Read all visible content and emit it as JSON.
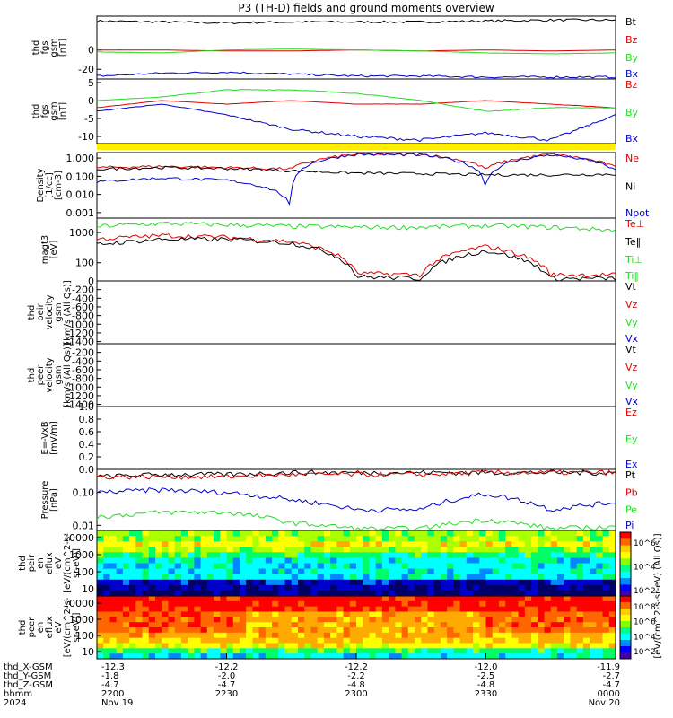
{
  "title": "P3 (TH-D) fields and ground moments overview",
  "colors": {
    "black": "#000000",
    "red": "#dd0000",
    "green": "#22dd22",
    "blue": "#0000cc",
    "yellow": "#ffee00"
  },
  "panels": [
    {
      "id": "bfield-fgs-gsm",
      "ylabel_lines": [
        "thd",
        "fgs",
        "gsm",
        "[nT]"
      ],
      "yticks": [
        "0",
        "-20"
      ],
      "ylim": [
        -30,
        35
      ],
      "scale": "linear",
      "legend": [
        {
          "name": "Bt",
          "color": "black"
        },
        {
          "name": "Bz",
          "color": "red"
        },
        {
          "name": "By",
          "color": "green"
        },
        {
          "name": "Bx",
          "color": "blue"
        }
      ]
    },
    {
      "id": "bfield-fgs-gsm-zoom",
      "ylabel_lines": [
        "thd",
        "fgs",
        "gsm",
        "[nT]"
      ],
      "yticks": [
        "5",
        "0",
        "-5",
        "-10"
      ],
      "ylim": [
        -12,
        6
      ],
      "scale": "linear",
      "legend": [
        {
          "name": "Bz",
          "color": "red"
        },
        {
          "name": "By",
          "color": "green"
        },
        {
          "name": "Bx",
          "color": "blue"
        }
      ]
    },
    {
      "id": "density",
      "ylabel_lines": [
        "Density",
        "[1/cc]",
        "[cm-3]"
      ],
      "yticks": [
        "1.000",
        "0.100",
        "0.010",
        "0.001"
      ],
      "ylim": [
        0.0005,
        2
      ],
      "scale": "log",
      "legend": [
        {
          "name": "Ne",
          "color": "red"
        },
        {
          "name": "Ni",
          "color": "black"
        },
        {
          "name": "Npot",
          "color": "blue"
        }
      ]
    },
    {
      "id": "temperature",
      "ylabel_lines": [
        "magt3",
        "[eV]"
      ],
      "yticks": [
        "1000",
        "100"
      ],
      "ylim": [
        25,
        3000
      ],
      "scale": "log",
      "legend": [
        {
          "name": "Te⊥",
          "color": "red"
        },
        {
          "name": "Te‖",
          "color": "black"
        },
        {
          "name": "Ti⊥",
          "color": "green"
        },
        {
          "name": "Ti‖",
          "color": "green"
        }
      ]
    },
    {
      "id": "ion-velocity",
      "ylabel_lines": [
        "thd",
        "peir",
        "velocity",
        "gsm",
        "[km/s (All Qs)]"
      ],
      "yticks": [
        "0",
        "-200",
        "-400",
        "-600",
        "-800",
        "-1000",
        "-1200",
        "-1400"
      ],
      "ylim": [
        -1450,
        0
      ],
      "scale": "linear",
      "legend": [
        {
          "name": "Vt",
          "color": "black"
        },
        {
          "name": "Vz",
          "color": "red"
        },
        {
          "name": "Vy",
          "color": "green"
        },
        {
          "name": "Vx",
          "color": "blue"
        }
      ]
    },
    {
      "id": "electron-velocity",
      "ylabel_lines": [
        "thd",
        "peer",
        "velocity",
        "gsm",
        "[km/s (All Qs)]"
      ],
      "yticks": [
        "-200",
        "-400",
        "-600",
        "-800",
        "-1000",
        "-1200",
        "-1400"
      ],
      "ylim": [
        -1450,
        0
      ],
      "scale": "linear",
      "legend": [
        {
          "name": "Vt",
          "color": "black"
        },
        {
          "name": "Vz",
          "color": "red"
        },
        {
          "name": "Vy",
          "color": "green"
        },
        {
          "name": "Vx",
          "color": "blue"
        }
      ]
    },
    {
      "id": "efield",
      "ylabel_lines": [
        "E=-VxB",
        "[mV/m]"
      ],
      "yticks": [
        "1.0",
        "0.8",
        "0.6",
        "0.4",
        "0.2",
        "0.0"
      ],
      "ylim": [
        0,
        1
      ],
      "scale": "linear",
      "legend": [
        {
          "name": "Ez",
          "color": "red"
        },
        {
          "name": "Ey",
          "color": "green"
        },
        {
          "name": "Ex",
          "color": "blue"
        }
      ]
    },
    {
      "id": "pressure",
      "ylabel_lines": [
        "Pressure",
        "[nPa]"
      ],
      "yticks": [
        "0.10",
        "0.01"
      ],
      "ylim": [
        0.007,
        0.5
      ],
      "scale": "log",
      "legend": [
        {
          "name": "Pt",
          "color": "black"
        },
        {
          "name": "Pb",
          "color": "red"
        },
        {
          "name": "Pe",
          "color": "green"
        },
        {
          "name": "Pi",
          "color": "blue"
        }
      ]
    },
    {
      "id": "ion-spectrogram",
      "ylabel_lines": [
        "thd",
        "peir",
        "en",
        "eflux",
        "eV",
        "[eV/(cm^2-s-",
        "sr-eV)]"
      ],
      "yticks": [
        "10000",
        "1000",
        "100",
        "10"
      ],
      "scale": "log"
    },
    {
      "id": "electron-spectrogram",
      "ylabel_lines": [
        "thd",
        "peer",
        "en",
        "eflux",
        "eV",
        "[eV/(cm^2-s-",
        "sr-eV)]"
      ],
      "yticks": [
        "10000",
        "1000",
        "100",
        "10"
      ],
      "scale": "log"
    }
  ],
  "colorbar": {
    "ticks_top": [
      "10^6",
      "10^4",
      "10^2"
    ],
    "ticks_bottom": [
      "10^8",
      "10^6",
      "10^4",
      "10^2"
    ],
    "label": "[eV/(cm^2-s-sr-eV) (All Qs)]"
  },
  "xaxis": {
    "row_labels": [
      "thd_X-GSM",
      "thd_Y-GSM",
      "thd_Z-GSM",
      "hhmm",
      "2024"
    ],
    "columns": [
      [
        "-12.3",
        "-1.8",
        "-4.7",
        "2200",
        "Nov 19"
      ],
      [
        "-12.2",
        "-2.0",
        "-4.7",
        "2230",
        ""
      ],
      [
        "-12.2",
        "-2.2",
        "-4.8",
        "2300",
        ""
      ],
      [
        "-12.0",
        "-2.5",
        "-4.8",
        "2330",
        ""
      ],
      [
        "-11.9",
        "-2.7",
        "-4.7",
        "0000",
        "Nov 20"
      ]
    ]
  },
  "chart_data": {
    "type": "line",
    "title": "P3 (TH-D) fields and ground moments overview",
    "x": [
      "2200",
      "2215",
      "2230",
      "2245",
      "2300",
      "2315",
      "2330",
      "2345",
      "0000"
    ],
    "panels": [
      {
        "id": "bfield-fgs-gsm",
        "series": [
          {
            "name": "Bt",
            "values": [
              30,
              29,
              28,
              29,
              29,
              29,
              30,
              31,
              31
            ]
          },
          {
            "name": "Bz",
            "values": [
              0,
              0,
              -1,
              -1,
              0,
              -1,
              0,
              -1,
              0
            ]
          },
          {
            "name": "By",
            "values": [
              -2,
              -3,
              0,
              1,
              0,
              -1,
              -3,
              -4,
              -3
            ]
          },
          {
            "name": "Bx",
            "values": [
              -27,
              -24,
              -23,
              -25,
              -27,
              -27,
              -28,
              -28,
              -28
            ]
          }
        ]
      },
      {
        "id": "bfield-fgs-gsm-zoom",
        "series": [
          {
            "name": "Bz",
            "values": [
              -2,
              0,
              -1,
              0,
              -1,
              -1,
              0,
              -1,
              -2
            ]
          },
          {
            "name": "By",
            "values": [
              0,
              1,
              3,
              3,
              2,
              0,
              -3,
              -2,
              -2
            ]
          },
          {
            "name": "Bx",
            "values": [
              -3,
              -1,
              -4,
              -8,
              -10,
              -11,
              -9,
              -11,
              -4
            ]
          }
        ]
      },
      {
        "id": "density",
        "series": [
          {
            "name": "Ne",
            "values": [
              0.3,
              0.35,
              0.3,
              0.25,
              1.6,
              1.6,
              0.25,
              1.6,
              0.3
            ]
          },
          {
            "name": "Ni",
            "values": [
              0.25,
              0.3,
              0.27,
              0.2,
              0.15,
              0.14,
              0.12,
              0.12,
              0.13
            ]
          },
          {
            "name": "Npot",
            "values": [
              0.05,
              0.08,
              0.06,
              0.0007,
              1.6,
              1.5,
              0.02,
              1.5,
              0.2
            ]
          }
        ]
      },
      {
        "id": "temperature",
        "series": [
          {
            "name": "Ti‖",
            "values": [
              1600,
              2000,
              1800,
              1600,
              1500,
              1500,
              1700,
              1500,
              1200
            ]
          },
          {
            "name": "Te⊥",
            "values": [
              600,
              800,
              700,
              500,
              45,
              40,
              350,
              40,
              40
            ]
          },
          {
            "name": "Te‖",
            "values": [
              400,
              600,
              600,
              450,
              35,
              30,
              250,
              30,
              30
            ]
          }
        ]
      },
      {
        "id": "pressure",
        "series": [
          {
            "name": "Pt",
            "values": [
              0.3,
              0.35,
              0.35,
              0.4,
              0.4,
              0.4,
              0.4,
              0.4,
              0.4
            ]
          },
          {
            "name": "Pb",
            "values": [
              0.3,
              0.3,
              0.3,
              0.35,
              0.35,
              0.35,
              0.4,
              0.4,
              0.4
            ]
          },
          {
            "name": "Pi",
            "values": [
              0.1,
              0.12,
              0.1,
              0.06,
              0.03,
              0.03,
              0.09,
              0.03,
              0.05
            ]
          },
          {
            "name": "Pe",
            "values": [
              0.018,
              0.025,
              0.025,
              0.012,
              0.008,
              0.008,
              0.015,
              0.008,
              0.009
            ]
          }
        ]
      }
    ]
  }
}
